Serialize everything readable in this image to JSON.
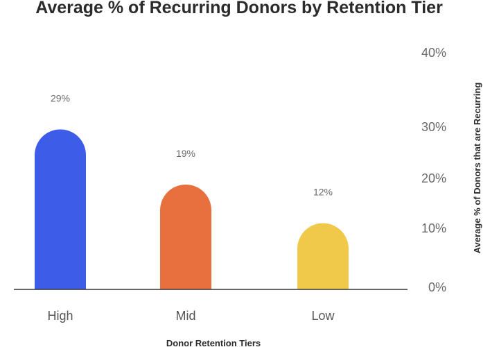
{
  "chart_data": {
    "type": "bar",
    "title": "Average % of Recurring Donors by Retention Tier",
    "xlabel": "Donor Retention Tiers",
    "ylabel": "Average % of Donors that are Recurring",
    "categories": [
      "High",
      "Mid",
      "Low"
    ],
    "values": [
      29,
      19,
      12
    ],
    "data_labels": [
      "29%",
      "19%",
      "12%"
    ],
    "colors": [
      "#3d5ce8",
      "#e8703e",
      "#f0c94a"
    ],
    "ylim": [
      0,
      40
    ],
    "y_ticks": [
      {
        "value": 0,
        "label": "0%"
      },
      {
        "value": 10,
        "label": "10%"
      },
      {
        "value": 20,
        "label": "20%"
      },
      {
        "value": 30,
        "label": "30%"
      },
      {
        "value": 40,
        "label": "40%"
      }
    ],
    "y_axis_side": "right",
    "grid": false,
    "legend": "none"
  }
}
